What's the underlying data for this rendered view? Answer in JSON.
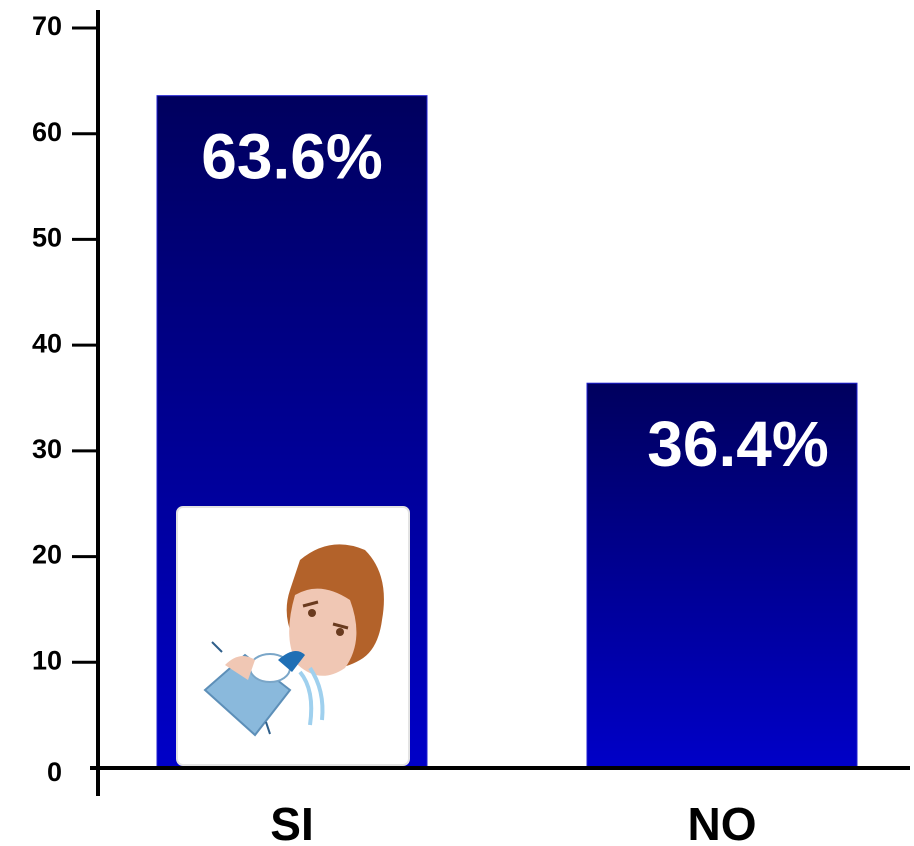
{
  "chart_data": {
    "type": "bar",
    "categories": [
      "SI",
      "NO"
    ],
    "values": [
      63.6,
      36.4
    ],
    "value_labels": [
      "63.6%",
      "36.4%"
    ],
    "color": "#0000c8",
    "ylim": [
      0,
      70
    ],
    "yticks": [
      0,
      10,
      20,
      30,
      40,
      50,
      60,
      70
    ],
    "grid": false
  }
}
